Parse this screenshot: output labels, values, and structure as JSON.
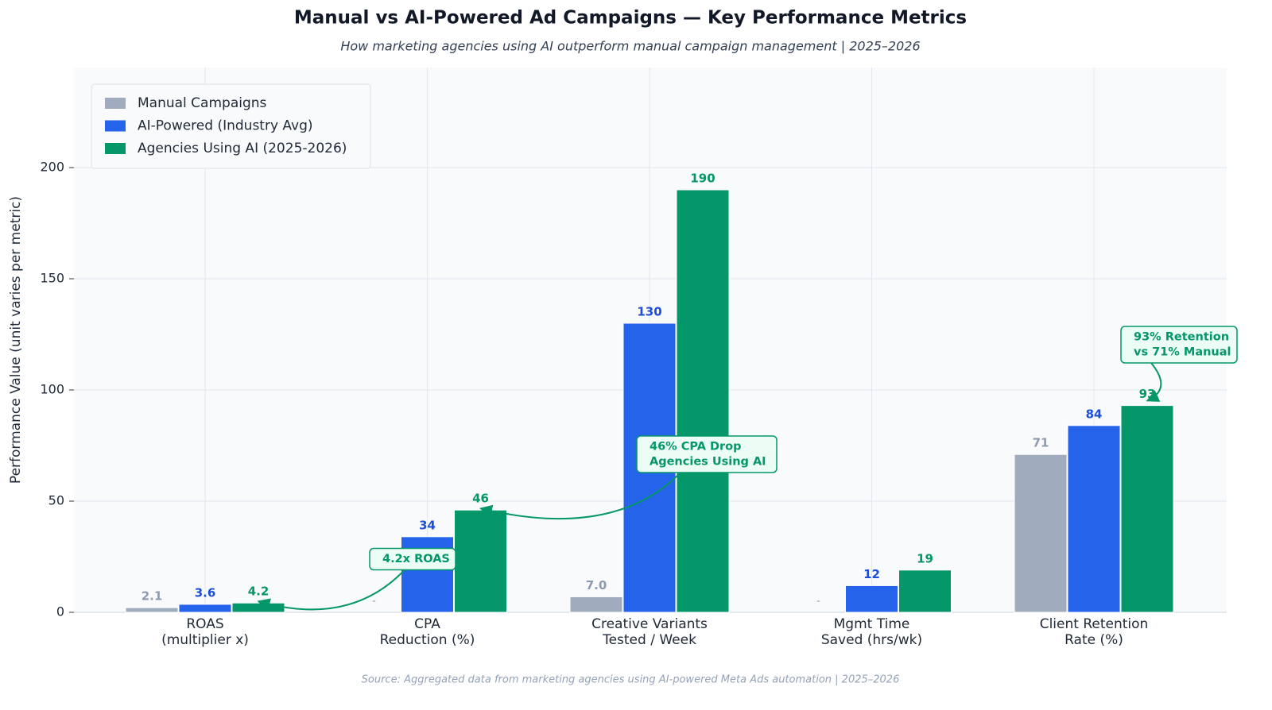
{
  "chart_data": {
    "type": "bar",
    "title": "Manual vs AI-Powered Ad Campaigns — Key Performance Metrics",
    "subtitle": "How marketing agencies using AI outperform manual campaign management  |  2025–2026",
    "y_label": "Performance Value  (unit varies per metric)",
    "source": "Source: Aggregated data from marketing agencies using AI-powered Meta Ads automation  |  2025–2026",
    "categories": [
      [
        "ROAS",
        "(multiplier x)"
      ],
      [
        "CPA",
        "Reduction (%)"
      ],
      [
        "Creative Variants",
        "Tested / Week"
      ],
      [
        "Mgmt Time",
        "Saved (hrs/wk)"
      ],
      [
        "Client Retention",
        "Rate (%)"
      ]
    ],
    "series": [
      {
        "name": "Manual Campaigns",
        "color": "#a0abbd",
        "label_color": "#8d9ab0",
        "values": [
          2.1,
          null,
          7.0,
          null,
          71
        ],
        "value_labels": [
          "2.1",
          "-",
          "7.0",
          "-",
          "71"
        ]
      },
      {
        "name": "AI-Powered (Industry Avg)",
        "color": "#2563eb",
        "label_color": "#1d4ed8",
        "values": [
          3.6,
          34,
          130,
          12,
          84
        ]
      },
      {
        "name": "Agencies Using AI (2025-2026)",
        "color": "#059669",
        "label_color": "#059669",
        "values": [
          4.2,
          46,
          190,
          19,
          93
        ]
      }
    ],
    "annotations": [
      {
        "text": [
          "4.2x ROAS"
        ]
      },
      {
        "text": [
          "46% CPA Drop",
          "Agencies Using AI"
        ]
      },
      {
        "text": [
          "93% Retention",
          "vs 71% Manual"
        ]
      }
    ],
    "ylim": [
      0,
      245
    ],
    "yticks": [
      0,
      50,
      100,
      150,
      200
    ],
    "grid": true,
    "legend": "upper left"
  }
}
